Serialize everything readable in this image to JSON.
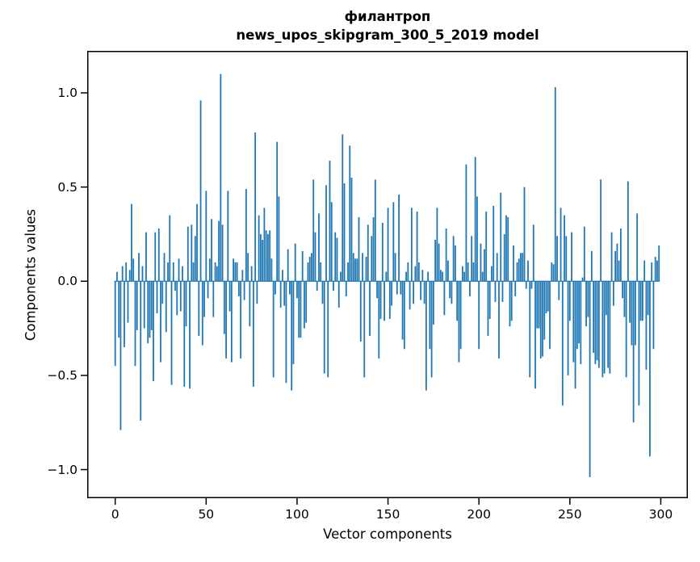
{
  "title": {
    "line1": "филантроп",
    "line2": "news_upos_skipgram_300_5_2019 model"
  },
  "chart_data": {
    "type": "bar",
    "title": "филантроп — news_upos_skipgram_300_5_2019 model",
    "xlabel": "Vector components",
    "ylabel": "Components values",
    "bar_color": "#1f77b4",
    "axis_color": "#000000",
    "background_color": "#ffffff",
    "grid": false,
    "legend_position": "none",
    "x_ticks": [
      0,
      50,
      100,
      150,
      200,
      250,
      300
    ],
    "y_ticks": [
      1.0,
      0.5,
      0.0,
      -0.5,
      -1.0
    ],
    "xlim": [
      -15.4,
      314.9
    ],
    "ylim": [
      -1.152,
      1.223
    ],
    "n_components": 300,
    "values": [
      -0.45,
      0.05,
      -0.3,
      -0.79,
      0.08,
      -0.35,
      0.1,
      -0.22,
      0.06,
      0.41,
      0.12,
      -0.45,
      -0.26,
      0.15,
      -0.74,
      0.08,
      -0.25,
      0.26,
      -0.33,
      -0.3,
      -0.26,
      -0.53,
      0.26,
      -0.17,
      0.28,
      -0.43,
      -0.12,
      0.15,
      -0.27,
      0.1,
      0.35,
      -0.55,
      0.1,
      -0.05,
      -0.18,
      0.12,
      -0.16,
      0.08,
      -0.56,
      -0.24,
      0.29,
      -0.57,
      0.3,
      0.1,
      0.24,
      0.41,
      -0.29,
      0.96,
      -0.34,
      -0.19,
      0.48,
      -0.09,
      0.12,
      0.33,
      -0.19,
      0.1,
      0.08,
      0.32,
      1.1,
      0.3,
      -0.28,
      -0.41,
      0.48,
      -0.16,
      -0.43,
      0.12,
      0.1,
      0.1,
      -0.08,
      -0.41,
      0.06,
      -0.1,
      0.49,
      0.15,
      -0.24,
      0.08,
      -0.56,
      0.79,
      -0.12,
      0.35,
      0.25,
      0.22,
      0.39,
      0.27,
      0.25,
      0.27,
      0.12,
      -0.51,
      -0.07,
      0.74,
      0.45,
      -0.14,
      0.06,
      -0.13,
      -0.54,
      0.17,
      -0.07,
      -0.58,
      -0.44,
      0.2,
      -0.09,
      -0.3,
      -0.3,
      0.16,
      -0.25,
      -0.22,
      0.1,
      0.13,
      0.15,
      0.54,
      0.26,
      -0.05,
      0.36,
      0.1,
      -0.12,
      -0.49,
      0.51,
      -0.51,
      0.64,
      0.42,
      -0.05,
      0.26,
      0.23,
      -0.14,
      0.05,
      0.78,
      0.52,
      -0.08,
      0.1,
      0.72,
      0.55,
      0.15,
      0.12,
      0.12,
      0.34,
      -0.32,
      0.15,
      -0.51,
      0.13,
      0.3,
      -0.29,
      0.24,
      0.34,
      0.54,
      -0.09,
      -0.41,
      -0.2,
      0.31,
      -0.21,
      0.05,
      0.39,
      -0.2,
      -0.13,
      0.42,
      0.15,
      -0.07,
      0.46,
      -0.07,
      -0.31,
      -0.36,
      0.05,
      0.1,
      -0.15,
      0.39,
      -0.12,
      0.08,
      0.37,
      0.1,
      -0.1,
      0.06,
      -0.12,
      -0.58,
      0.05,
      -0.36,
      -0.51,
      -0.23,
      0.22,
      0.39,
      0.2,
      0.06,
      0.05,
      -0.18,
      0.28,
      0.11,
      -0.09,
      -0.12,
      0.24,
      0.19,
      -0.21,
      -0.43,
      -0.36,
      0.08,
      0.05,
      0.62,
      0.1,
      -0.08,
      0.24,
      0.1,
      0.66,
      0.45,
      -0.36,
      0.2,
      0.05,
      0.17,
      0.37,
      -0.29,
      -0.2,
      0.08,
      0.4,
      -0.11,
      0.15,
      -0.41,
      0.47,
      -0.11,
      0.25,
      0.35,
      0.34,
      -0.24,
      -0.21,
      0.19,
      -0.08,
      0.1,
      0.12,
      0.15,
      0.15,
      0.5,
      -0.04,
      0.11,
      -0.51,
      -0.04,
      0.3,
      -0.57,
      -0.25,
      -0.25,
      -0.41,
      -0.4,
      -0.31,
      -0.17,
      -0.16,
      -0.36,
      0.1,
      0.09,
      1.03,
      0.24,
      -0.1,
      0.39,
      -0.66,
      0.35,
      0.24,
      -0.5,
      -0.21,
      0.26,
      -0.43,
      -0.57,
      -0.36,
      -0.33,
      -0.44,
      0.02,
      0.29,
      -0.24,
      -0.19,
      -1.04,
      0.16,
      -0.38,
      -0.44,
      -0.42,
      -0.46,
      0.54,
      -0.51,
      -0.49,
      -0.18,
      -0.46,
      -0.49,
      0.26,
      -0.13,
      0.16,
      0.2,
      0.11,
      0.28,
      -0.09,
      -0.19,
      -0.51,
      0.53,
      -0.22,
      -0.34,
      -0.75,
      -0.34,
      0.36,
      -0.66,
      -0.21,
      -0.21,
      0.11,
      -0.47,
      -0.18,
      -0.93,
      0.1,
      -0.36,
      0.13,
      0.11,
      0.19
    ]
  }
}
